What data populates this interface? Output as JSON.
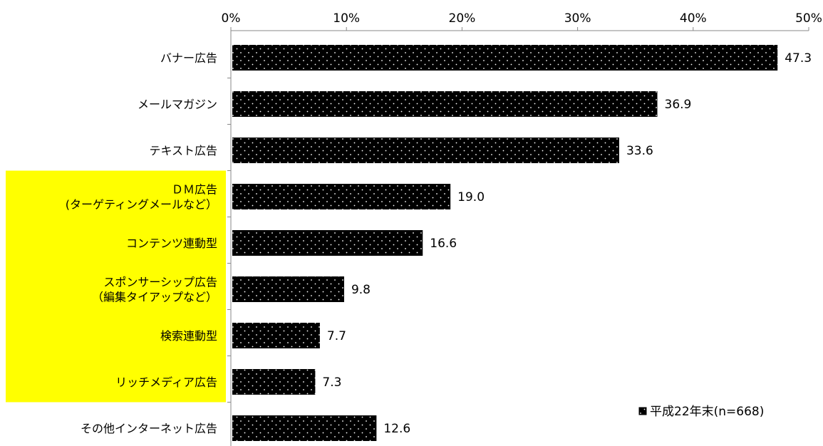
{
  "chart_data": {
    "type": "bar",
    "orientation": "horizontal",
    "categories": [
      [
        "バナー広告"
      ],
      [
        "メールマガジン"
      ],
      [
        "テキスト広告"
      ],
      [
        "ＤＭ広告",
        "(ターゲティングメールなど）"
      ],
      [
        "コンテンツ連動型"
      ],
      [
        "スポンサーシップ広告",
        "（編集タイアップなど）"
      ],
      [
        "検索連動型"
      ],
      [
        "リッチメディア広告"
      ],
      [
        "その他インターネット広告"
      ]
    ],
    "highlighted_categories": [
      3,
      4,
      5,
      6,
      7
    ],
    "series": [
      {
        "name": "平成22年末(n=668)",
        "values": [
          47.3,
          36.9,
          33.6,
          19.0,
          16.6,
          9.8,
          7.7,
          7.3,
          12.6
        ]
      }
    ],
    "value_labels": [
      "47.3",
      "36.9",
      "33.6",
      "19.0",
      "16.6",
      "9.8",
      "7.7",
      "7.3",
      "12.6"
    ],
    "xlim": [
      0,
      50
    ],
    "ticks": [
      0,
      10,
      20,
      30,
      40,
      50
    ],
    "tick_labels": [
      "0%",
      "10%",
      "20%",
      "30%",
      "40%",
      "50%"
    ],
    "axis_position": "top",
    "grid": false,
    "legend_position": "bottom-right",
    "bar_color": "#000000",
    "bar_pattern": "white dots",
    "highlight_color": "#ffff00"
  }
}
